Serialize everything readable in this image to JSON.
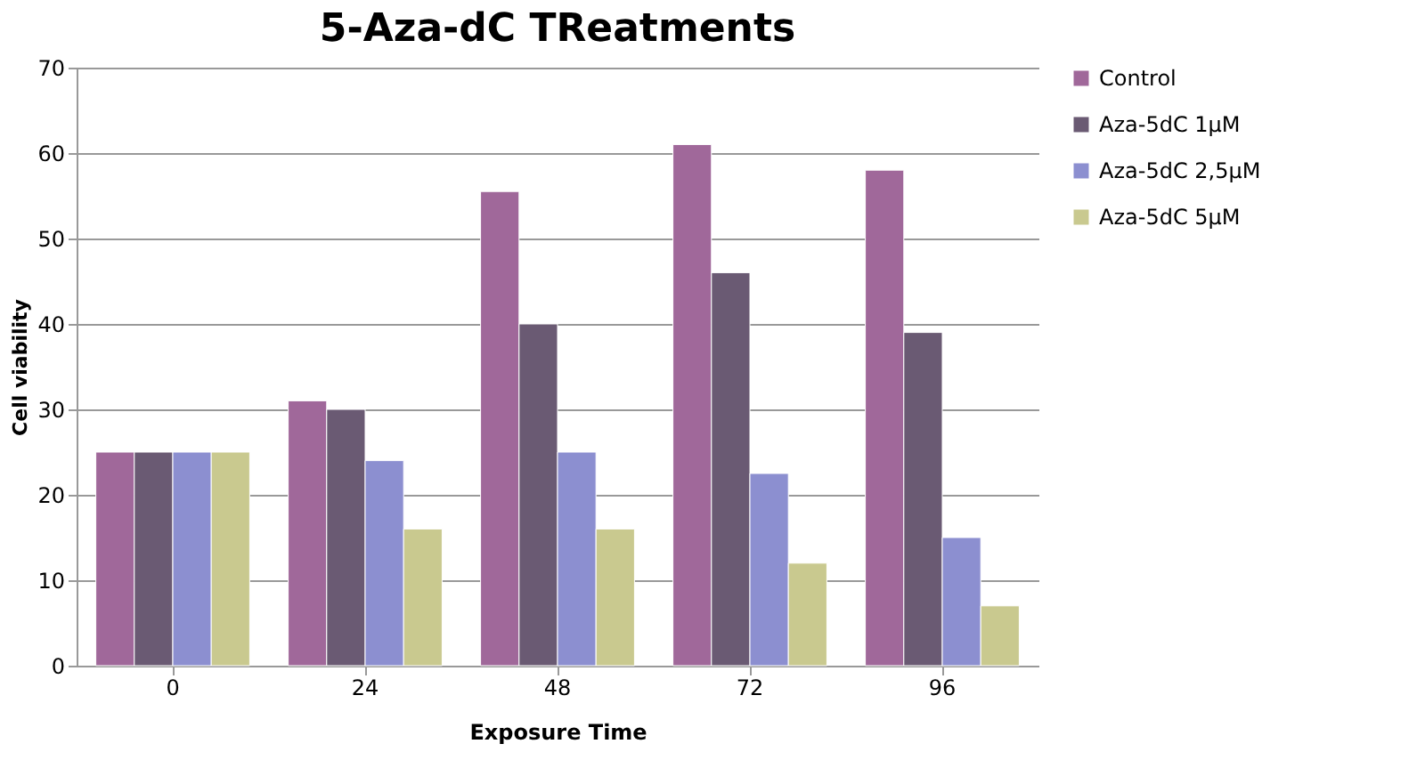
{
  "chart_data": {
    "type": "bar",
    "title": "5-Aza-dC TReatments",
    "xlabel": "Exposure Time",
    "ylabel": "Cell viability",
    "categories": [
      "0",
      "24",
      "48",
      "72",
      "96"
    ],
    "series": [
      {
        "name": "Control",
        "color": "#a0689a",
        "values": [
          25,
          31,
          55.5,
          61,
          58
        ]
      },
      {
        "name": "Aza-5dC 1µM",
        "color": "#6a5a73",
        "values": [
          25,
          30,
          40,
          46,
          39
        ]
      },
      {
        "name": "Aza-5dC 2,5µM",
        "color": "#8c8fd0",
        "values": [
          25,
          24,
          25,
          22.5,
          15
        ]
      },
      {
        "name": "Aza-5dC 5µM",
        "color": "#c9c98f",
        "values": [
          25,
          16,
          16,
          12,
          7
        ]
      }
    ],
    "ylim": [
      0,
      70
    ],
    "yticks": [
      0,
      10,
      20,
      30,
      40,
      50,
      60,
      70
    ],
    "grid": "y",
    "legend": "right"
  }
}
